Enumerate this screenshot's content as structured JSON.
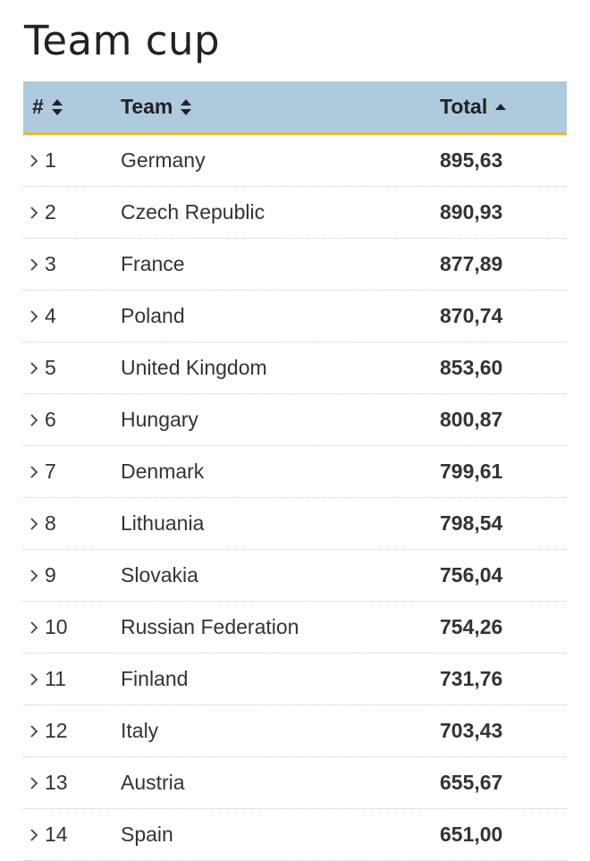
{
  "page": {
    "title": "Team cup"
  },
  "table": {
    "columns": {
      "rank": "#",
      "team": "Team",
      "total": "Total"
    },
    "sort": {
      "column": "total",
      "direction": "ascending-icon"
    },
    "rows": [
      {
        "rank": "1",
        "team": "Germany",
        "total": "895,63"
      },
      {
        "rank": "2",
        "team": "Czech Republic",
        "total": "890,93"
      },
      {
        "rank": "3",
        "team": "France",
        "total": "877,89"
      },
      {
        "rank": "4",
        "team": "Poland",
        "total": "870,74"
      },
      {
        "rank": "5",
        "team": "United Kingdom",
        "total": "853,60"
      },
      {
        "rank": "6",
        "team": "Hungary",
        "total": "800,87"
      },
      {
        "rank": "7",
        "team": "Denmark",
        "total": "799,61"
      },
      {
        "rank": "8",
        "team": "Lithuania",
        "total": "798,54"
      },
      {
        "rank": "9",
        "team": "Slovakia",
        "total": "756,04"
      },
      {
        "rank": "10",
        "team": "Russian Federation",
        "total": "754,26"
      },
      {
        "rank": "11",
        "team": "Finland",
        "total": "731,76"
      },
      {
        "rank": "12",
        "team": "Italy",
        "total": "703,43"
      },
      {
        "rank": "13",
        "team": "Austria",
        "total": "655,67"
      },
      {
        "rank": "14",
        "team": "Spain",
        "total": "651,00"
      }
    ]
  },
  "colors": {
    "header_bg": "#aecadd",
    "header_underline": "#f0b23a",
    "text": "#222222"
  },
  "icons": {
    "row_expand": "chevron-right-icon",
    "sortable": "sort-both-icon",
    "sorted": "sort-up-icon"
  }
}
